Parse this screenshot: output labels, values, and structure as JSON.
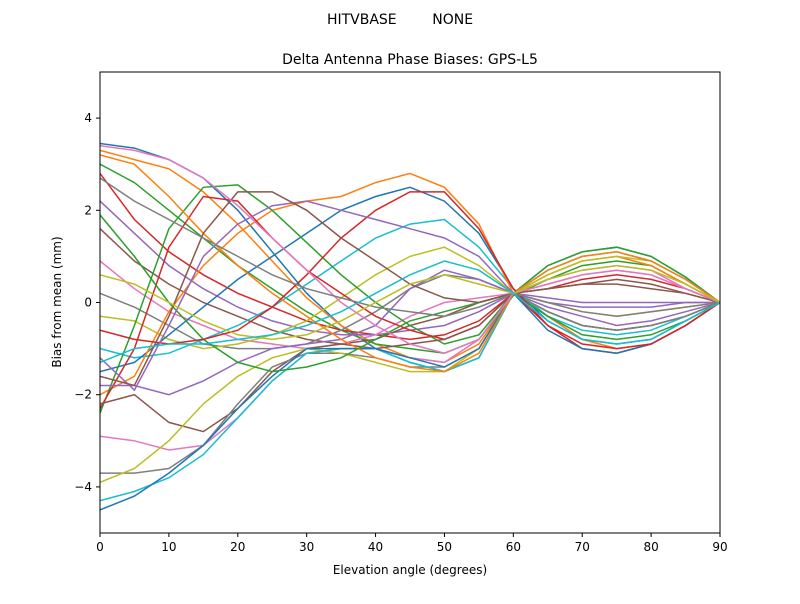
{
  "chart_data": {
    "type": "line",
    "suptitle": "HITVBASE        NONE",
    "title": "Delta Antenna Phase Biases: GPS-L5",
    "xlabel": "Elevation angle (degrees)",
    "ylabel": "Bias from mean (mm)",
    "xlim": [
      0,
      90
    ],
    "ylim": [
      -5,
      5
    ],
    "xticks": [
      0,
      10,
      20,
      30,
      40,
      50,
      60,
      70,
      80,
      90
    ],
    "yticks": [
      -4,
      -2,
      0,
      2,
      4
    ],
    "grid": false,
    "colors": [
      "#1f77b4",
      "#ff7f0e",
      "#2ca02c",
      "#d62728",
      "#9467bd",
      "#8c564b",
      "#e377c2",
      "#7f7f7f",
      "#bcbd22",
      "#17becf"
    ],
    "x": [
      0,
      5,
      10,
      15,
      20,
      25,
      30,
      35,
      40,
      45,
      50,
      55,
      60,
      65,
      70,
      75,
      80,
      85,
      90
    ],
    "series": [
      {
        "values": [
          3.45,
          3.35,
          3.1,
          2.7,
          2.0,
          1.1,
          0.2,
          -0.5,
          -1.0,
          -1.3,
          -1.5,
          -1.2,
          0.2,
          0.8,
          1.1,
          1.2,
          1.0,
          0.55,
          0
        ]
      },
      {
        "values": [
          3.3,
          3.1,
          2.9,
          2.4,
          1.7,
          0.9,
          0.1,
          -0.5,
          -0.9,
          -1.2,
          -1.3,
          -0.9,
          0.2,
          -0.3,
          -0.8,
          -1.0,
          -0.9,
          -0.5,
          0
        ]
      },
      {
        "values": [
          3.0,
          2.6,
          2.0,
          1.4,
          0.8,
          0.3,
          -0.2,
          -0.6,
          -0.9,
          -1.0,
          -1.1,
          -0.8,
          0.15,
          0.5,
          0.8,
          0.9,
          0.8,
          0.4,
          0
        ]
      },
      {
        "values": [
          2.8,
          1.8,
          1.1,
          0.6,
          0.2,
          -0.1,
          -0.4,
          -0.6,
          -0.7,
          -0.8,
          -0.7,
          -0.4,
          0.2,
          0.3,
          0.5,
          0.6,
          0.5,
          0.3,
          0
        ]
      },
      {
        "values": [
          2.2,
          1.5,
          0.8,
          0.3,
          -0.1,
          -0.4,
          -0.6,
          -0.7,
          -0.7,
          -0.6,
          -0.5,
          -0.2,
          0.2,
          -0.1,
          -0.3,
          -0.5,
          -0.4,
          -0.2,
          0
        ]
      },
      {
        "values": [
          1.6,
          0.9,
          0.4,
          0.0,
          -0.3,
          -0.6,
          -0.8,
          -0.9,
          -0.8,
          -0.5,
          -0.3,
          0.0,
          0.2,
          -0.2,
          -0.5,
          -0.6,
          -0.5,
          -0.3,
          0
        ]
      },
      {
        "values": [
          0.9,
          0.3,
          -0.2,
          -0.5,
          -0.8,
          -0.9,
          -1.0,
          -0.9,
          -0.7,
          -0.3,
          0.0,
          0.1,
          0.2,
          0.4,
          0.6,
          0.7,
          0.6,
          0.3,
          0
        ]
      },
      {
        "values": [
          0.2,
          -0.1,
          -0.5,
          -0.9,
          -1.0,
          -1.0,
          -0.9,
          -0.6,
          -0.2,
          0.3,
          0.6,
          0.5,
          0.2,
          -0.2,
          -0.5,
          -0.6,
          -0.5,
          -0.3,
          0
        ]
      },
      {
        "values": [
          -0.3,
          -0.4,
          -0.8,
          -1.0,
          -0.9,
          -0.7,
          -0.4,
          0.1,
          0.6,
          1.0,
          1.2,
          0.8,
          0.2,
          0.0,
          -0.2,
          -0.3,
          -0.2,
          -0.1,
          0
        ]
      },
      {
        "values": [
          -1.0,
          -1.2,
          -1.1,
          -0.8,
          -0.5,
          -0.1,
          0.4,
          0.9,
          1.4,
          1.7,
          1.8,
          1.2,
          0.3,
          -0.3,
          -0.6,
          -0.7,
          -0.6,
          -0.3,
          0
        ]
      },
      {
        "values": [
          -1.5,
          -1.3,
          -0.7,
          -0.1,
          0.5,
          1.0,
          1.5,
          2.0,
          2.3,
          2.5,
          2.2,
          1.5,
          0.3,
          -0.4,
          -0.8,
          -0.9,
          -0.8,
          -0.4,
          0
        ]
      },
      {
        "values": [
          -2.0,
          -1.6,
          -0.2,
          0.8,
          1.5,
          2.0,
          2.2,
          2.3,
          2.6,
          2.8,
          2.5,
          1.7,
          0.2,
          0.6,
          0.9,
          1.0,
          0.8,
          0.4,
          0
        ]
      },
      {
        "values": [
          -2.4,
          -0.5,
          1.6,
          2.5,
          2.55,
          2.0,
          1.3,
          0.6,
          0.0,
          -0.5,
          -0.9,
          -0.7,
          0.2,
          0.8,
          1.1,
          1.2,
          1.0,
          0.55,
          0
        ]
      },
      {
        "values": [
          -2.3,
          -1.0,
          1.2,
          2.3,
          2.2,
          1.4,
          0.7,
          0.2,
          -0.3,
          -0.6,
          -0.8,
          -0.5,
          0.2,
          -0.5,
          -1.0,
          -1.1,
          -0.9,
          -0.5,
          0
        ]
      },
      {
        "values": [
          -1.8,
          -1.8,
          -2.0,
          -1.7,
          -1.3,
          -1.0,
          -0.9,
          -0.8,
          -0.5,
          0.3,
          0.7,
          0.5,
          0.2,
          0.1,
          0.0,
          0.0,
          0.0,
          0.0,
          0
        ]
      },
      {
        "values": [
          -2.2,
          -2.0,
          -2.6,
          -2.8,
          -2.3,
          -1.5,
          -1.0,
          -0.9,
          -1.0,
          -0.9,
          -0.8,
          -0.5,
          0.2,
          0.3,
          0.4,
          0.4,
          0.3,
          0.2,
          0
        ]
      },
      {
        "values": [
          -2.9,
          -3.0,
          -3.2,
          -3.1,
          -2.5,
          -1.7,
          -1.1,
          -1.0,
          -1.0,
          -1.2,
          -1.3,
          -0.8,
          0.2,
          0.5,
          0.7,
          0.8,
          0.7,
          0.3,
          0
        ]
      },
      {
        "values": [
          -3.7,
          -3.7,
          -3.6,
          -3.1,
          -2.2,
          -1.4,
          -1.1,
          -1.1,
          -1.2,
          -1.4,
          -1.4,
          -1.0,
          0.2,
          -0.2,
          -0.5,
          -0.6,
          -0.5,
          -0.3,
          0
        ]
      },
      {
        "values": [
          -3.9,
          -3.6,
          -3.0,
          -2.2,
          -1.6,
          -1.2,
          -1.0,
          -1.1,
          -1.3,
          -1.5,
          -1.5,
          -1.0,
          0.2,
          0.6,
          0.9,
          1.0,
          0.9,
          0.5,
          0
        ]
      },
      {
        "values": [
          -4.3,
          -4.1,
          -3.8,
          -3.3,
          -2.5,
          -1.7,
          -1.1,
          -1.0,
          -1.0,
          -1.3,
          -1.5,
          -1.2,
          0.2,
          0.7,
          1.0,
          1.1,
          0.9,
          0.5,
          0
        ]
      },
      {
        "values": [
          -4.5,
          -4.2,
          -3.7,
          -3.1,
          -2.3,
          -1.6,
          -1.0,
          -1.0,
          -1.0,
          -1.2,
          -1.4,
          -1.0,
          0.2,
          -0.6,
          -1.0,
          -1.1,
          -0.9,
          -0.5,
          0
        ]
      },
      {
        "values": [
          3.2,
          3.0,
          2.3,
          1.5,
          0.8,
          0.2,
          -0.3,
          -0.8,
          -1.2,
          -1.4,
          -1.5,
          -1.1,
          0.2,
          0.7,
          1.0,
          1.1,
          0.9,
          0.5,
          0
        ]
      },
      {
        "values": [
          1.9,
          1.0,
          0.0,
          -0.8,
          -1.3,
          -1.5,
          -1.4,
          -1.2,
          -0.8,
          -0.4,
          -0.2,
          0.0,
          0.2,
          -0.3,
          -0.7,
          -0.8,
          -0.7,
          -0.4,
          0
        ]
      },
      {
        "values": [
          -0.6,
          -0.8,
          -0.9,
          -0.8,
          -0.6,
          -0.1,
          0.6,
          1.4,
          2.0,
          2.4,
          2.4,
          1.6,
          0.3,
          -0.5,
          -0.9,
          -1.0,
          -0.9,
          -0.5,
          0
        ]
      },
      {
        "values": [
          -1.2,
          -1.9,
          -0.5,
          1.0,
          1.7,
          2.1,
          2.2,
          2.0,
          1.8,
          1.6,
          1.4,
          1.0,
          0.2,
          0.0,
          -0.1,
          -0.1,
          -0.1,
          0.0,
          0
        ]
      },
      {
        "values": [
          -1.6,
          -1.8,
          -0.3,
          1.5,
          2.4,
          2.4,
          2.0,
          1.4,
          0.9,
          0.4,
          0.1,
          0.0,
          0.2,
          0.3,
          0.4,
          0.5,
          0.4,
          0.2,
          0
        ]
      },
      {
        "values": [
          3.4,
          3.3,
          3.1,
          2.7,
          2.1,
          1.4,
          0.7,
          0.0,
          -0.5,
          -0.9,
          -1.1,
          -0.8,
          0.2,
          0.4,
          0.6,
          0.7,
          0.6,
          0.3,
          0
        ]
      },
      {
        "values": [
          2.7,
          2.2,
          1.8,
          1.4,
          1.0,
          0.6,
          0.3,
          0.1,
          -0.1,
          -0.2,
          -0.3,
          -0.1,
          0.2,
          0.0,
          -0.2,
          -0.3,
          -0.2,
          -0.1,
          0
        ]
      },
      {
        "values": [
          0.6,
          0.4,
          0.0,
          -0.4,
          -0.7,
          -0.8,
          -0.7,
          -0.4,
          0.0,
          0.4,
          0.6,
          0.4,
          0.2,
          0.5,
          0.7,
          0.8,
          0.7,
          0.4,
          0
        ]
      },
      {
        "values": [
          -1.3,
          -1.0,
          -0.9,
          -0.9,
          -0.8,
          -0.7,
          -0.5,
          -0.2,
          0.2,
          0.6,
          0.9,
          0.7,
          0.2,
          -0.4,
          -0.8,
          -0.9,
          -0.8,
          -0.4,
          0
        ]
      }
    ]
  }
}
